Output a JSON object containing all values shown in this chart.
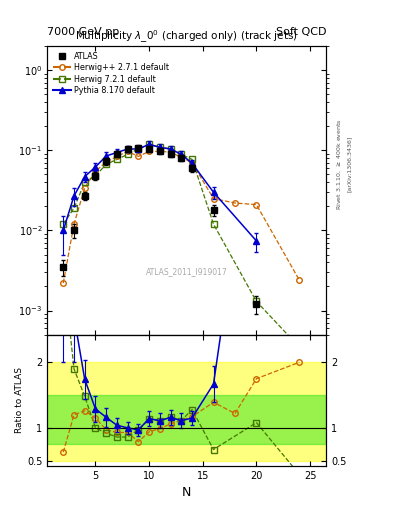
{
  "title": "Multiplicity $\\lambda\\_0^0$ (charged only) (track jets)",
  "top_left_label": "7000 GeV pp",
  "top_right_label": "Soft QCD",
  "watermark": "ATLAS_2011_I919017",
  "xlabel": "N",
  "ylabel_lower": "Ratio to ATLAS",
  "atlas_x": [
    2,
    3,
    4,
    5,
    6,
    7,
    8,
    9,
    10,
    11,
    12,
    13,
    14,
    16,
    20
  ],
  "atlas_y": [
    0.0035,
    0.01,
    0.027,
    0.048,
    0.073,
    0.09,
    0.104,
    0.107,
    0.104,
    0.098,
    0.09,
    0.08,
    0.06,
    0.018,
    0.0012
  ],
  "atlas_yerr": [
    0.0008,
    0.002,
    0.003,
    0.005,
    0.007,
    0.008,
    0.009,
    0.009,
    0.009,
    0.008,
    0.008,
    0.007,
    0.006,
    0.003,
    0.0003
  ],
  "herwigpp_x": [
    2,
    3,
    4,
    5,
    6,
    7,
    8,
    9,
    10,
    11,
    12,
    14,
    16,
    18,
    20,
    24
  ],
  "herwigpp_y": [
    0.0022,
    0.012,
    0.034,
    0.055,
    0.071,
    0.084,
    0.097,
    0.084,
    0.097,
    0.097,
    0.095,
    0.07,
    0.025,
    0.022,
    0.021,
    0.0024
  ],
  "herwig7_x": [
    2,
    3,
    4,
    5,
    6,
    7,
    8,
    9,
    10,
    11,
    12,
    13,
    14,
    16,
    20,
    24
  ],
  "herwig7_y": [
    0.012,
    0.019,
    0.04,
    0.048,
    0.067,
    0.077,
    0.089,
    0.104,
    0.119,
    0.109,
    0.104,
    0.089,
    0.077,
    0.012,
    0.0013,
    0.00035
  ],
  "pythia_x": [
    2,
    3,
    4,
    5,
    6,
    7,
    8,
    9,
    10,
    11,
    12,
    13,
    14,
    16,
    20
  ],
  "pythia_y": [
    0.01,
    0.027,
    0.047,
    0.062,
    0.085,
    0.094,
    0.104,
    0.104,
    0.119,
    0.109,
    0.104,
    0.089,
    0.069,
    0.03,
    0.0074
  ],
  "pythia_yerr": [
    0.005,
    0.007,
    0.007,
    0.007,
    0.009,
    0.009,
    0.009,
    0.009,
    0.011,
    0.011,
    0.009,
    0.009,
    0.007,
    0.005,
    0.002
  ],
  "ratio_herwigpp_x": [
    2,
    3,
    4,
    5,
    6,
    7,
    8,
    9,
    10,
    11,
    12,
    14,
    16,
    18,
    20,
    24
  ],
  "ratio_herwigpp_y": [
    0.63,
    1.2,
    1.26,
    1.15,
    0.97,
    0.93,
    0.93,
    0.79,
    0.94,
    0.99,
    1.06,
    1.17,
    1.39,
    1.22,
    1.75,
    2.0
  ],
  "ratio_herwig7_x": [
    2,
    3,
    4,
    5,
    6,
    7,
    8,
    9,
    10,
    11,
    12,
    13,
    14,
    16,
    20,
    24
  ],
  "ratio_herwig7_y": [
    3.43,
    1.9,
    1.48,
    1.0,
    0.92,
    0.86,
    0.86,
    0.97,
    1.14,
    1.11,
    1.16,
    1.11,
    1.28,
    0.67,
    1.08,
    0.29
  ],
  "ratio_pythia_x": [
    2,
    3,
    4,
    5,
    6,
    7,
    8,
    9,
    10,
    11,
    12,
    13,
    14,
    16,
    20
  ],
  "ratio_pythia_y": [
    2.86,
    2.7,
    1.74,
    1.29,
    1.16,
    1.04,
    1.0,
    0.97,
    1.14,
    1.11,
    1.16,
    1.11,
    1.15,
    1.67,
    6.17
  ],
  "ratio_pythia_yerr": [
    0.85,
    0.7,
    0.3,
    0.2,
    0.14,
    0.11,
    0.09,
    0.09,
    0.11,
    0.11,
    0.11,
    0.11,
    0.11,
    0.27,
    2.0
  ],
  "color_atlas": "#000000",
  "color_herwigpp": "#cc6600",
  "color_herwig7": "#447700",
  "color_pythia": "#0000cc",
  "band_yellow": "#ffff00",
  "band_green": "#00dd00",
  "ylim_upper": [
    0.0005,
    2.0
  ],
  "ylim_lower": [
    0.42,
    2.42
  ],
  "xlim": [
    0.5,
    26.5
  ]
}
